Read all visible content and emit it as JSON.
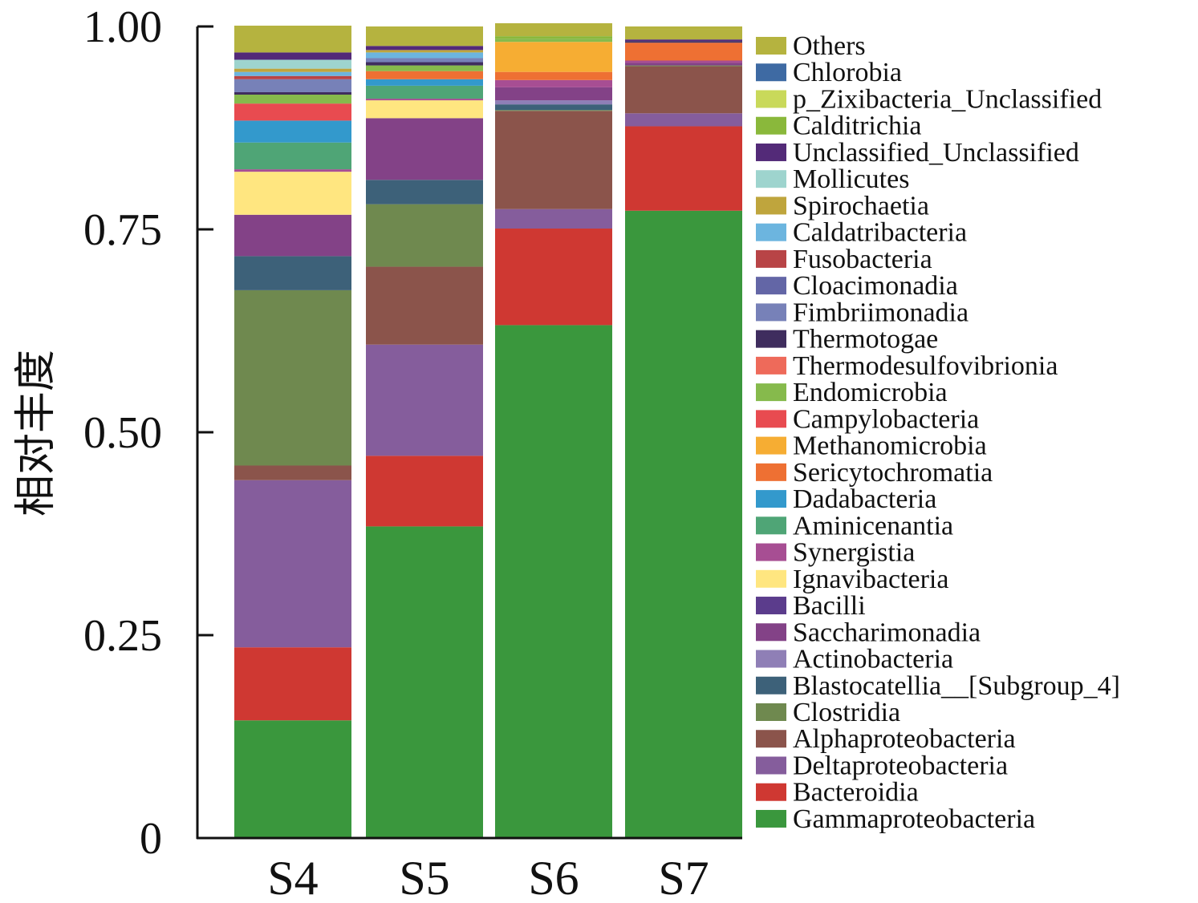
{
  "chart_data": {
    "type": "bar",
    "stacked": true,
    "title": "",
    "xlabel": "",
    "ylabel": "相对丰度",
    "ylim": [
      0,
      1.0
    ],
    "yticks": [
      "0",
      "0.25",
      "0.50",
      "0.75",
      "1.00"
    ],
    "ytick_values": [
      0,
      0.25,
      0.5,
      0.75,
      1.0
    ],
    "categories": [
      "S4",
      "S5",
      "S6",
      "S7"
    ],
    "legend_position": "right",
    "legend_order_top_to_bottom": [
      "Others",
      "Chlorobia",
      "p_Zixibacteria_Unclassified",
      "Calditrichia",
      "Unclassified_Unclassified",
      "Mollicutes",
      "Spirochaetia",
      "Caldatribacteria",
      "Fusobacteria",
      "Cloacimonadia",
      "Fimbriimonadia",
      "Thermotogae",
      "Thermodesulfovibrionia",
      "Endomicrobia",
      "Campylobacteria",
      "Methanomicrobia",
      "Sericytochromatia",
      "Dadabacteria",
      "Aminicenantia",
      "Synergistia",
      "Ignavibacteria",
      "Bacilli",
      "Saccharimonadia",
      "Actinobacteria",
      "Blastocatellia__[Subgroup_4]",
      "Clostridia",
      "Alphaproteobacteria",
      "Deltaproteobacteria",
      "Bacteroidia",
      "Gammaproteobacteria"
    ],
    "series": [
      {
        "name": "Gammaproteobacteria",
        "color": "#3A973D",
        "values": [
          0.145,
          0.384,
          0.632,
          0.773
        ]
      },
      {
        "name": "Bacteroidia",
        "color": "#CF3832",
        "values": [
          0.09,
          0.087,
          0.119,
          0.104
        ]
      },
      {
        "name": "Deltaproteobacteria",
        "color": "#855D9C",
        "values": [
          0.206,
          0.137,
          0.024,
          0.016
        ]
      },
      {
        "name": "Alphaproteobacteria",
        "color": "#8B544B",
        "values": [
          0.018,
          0.096,
          0.121,
          0.058
        ]
      },
      {
        "name": "Clostridia",
        "color": "#6F894F",
        "values": [
          0.216,
          0.077,
          0.001,
          0.001
        ]
      },
      {
        "name": "Blastocatellia__[Subgroup_4]",
        "color": "#3D6179",
        "values": [
          0.042,
          0.03,
          0.007,
          0.0
        ]
      },
      {
        "name": "Actinobacteria",
        "color": "#8F7FB6",
        "values": [
          0.0,
          0.0,
          0.005,
          0.0
        ]
      },
      {
        "name": "Saccharimonadia",
        "color": "#834287",
        "values": [
          0.051,
          0.076,
          0.016,
          0.003
        ]
      },
      {
        "name": "Bacilli",
        "color": "#5B3C8C",
        "values": [
          0.0,
          0.0,
          0.0,
          0.0
        ]
      },
      {
        "name": "Ignavibacteria",
        "color": "#FFE680",
        "values": [
          0.053,
          0.022,
          0.0,
          0.0
        ]
      },
      {
        "name": "Synergistia",
        "color": "#A74E93",
        "values": [
          0.003,
          0.002,
          0.009,
          0.003
        ]
      },
      {
        "name": "Aminicenantia",
        "color": "#4FA576",
        "values": [
          0.033,
          0.016,
          0.0,
          0.0
        ]
      },
      {
        "name": "Dadabacteria",
        "color": "#3399CC",
        "values": [
          0.027,
          0.008,
          0.0,
          0.0
        ]
      },
      {
        "name": "Sericytochromatia",
        "color": "#EE7033",
        "values": [
          0.0,
          0.01,
          0.01,
          0.022
        ]
      },
      {
        "name": "Methanomicrobia",
        "color": "#F6AD33",
        "values": [
          0.0,
          0.0,
          0.037,
          0.0
        ]
      },
      {
        "name": "Campylobacteria",
        "color": "#E84B50",
        "values": [
          0.021,
          0.0,
          0.0,
          0.0
        ]
      },
      {
        "name": "Endomicrobia",
        "color": "#86BA4C",
        "values": [
          0.011,
          0.007,
          0.004,
          0.0
        ]
      },
      {
        "name": "Thermodesulfovibrionia",
        "color": "#EE6A5A",
        "values": [
          0.0,
          0.0,
          0.0,
          0.0
        ]
      },
      {
        "name": "Thermotogae",
        "color": "#3F2D5E",
        "values": [
          0.003,
          0.004,
          0.0,
          0.002
        ]
      },
      {
        "name": "Fimbriimonadia",
        "color": "#7781B8",
        "values": [
          0.016,
          0.005,
          0.0,
          0.0
        ]
      },
      {
        "name": "Cloacimonadia",
        "color": "#6366A6",
        "values": [
          0.0,
          0.0,
          0.0,
          0.0
        ]
      },
      {
        "name": "Fusobacteria",
        "color": "#B84446",
        "values": [
          0.004,
          0.0,
          0.0,
          0.0
        ]
      },
      {
        "name": "Caldatribacteria",
        "color": "#6CB5DF",
        "values": [
          0.005,
          0.007,
          0.0,
          0.0
        ]
      },
      {
        "name": "Spirochaetia",
        "color": "#BFA53D",
        "values": [
          0.004,
          0.003,
          0.0,
          0.0
        ]
      },
      {
        "name": "Mollicutes",
        "color": "#9ED4CE",
        "values": [
          0.011,
          0.0,
          0.0,
          0.0
        ]
      },
      {
        "name": "Unclassified_Unclassified",
        "color": "#532A78",
        "values": [
          0.009,
          0.005,
          0.0,
          0.002
        ]
      },
      {
        "name": "Calditrichia",
        "color": "#8AB83B",
        "values": [
          0.0,
          0.0,
          0.003,
          0.0
        ]
      },
      {
        "name": "p_Zixibacteria_Unclassified",
        "color": "#C9D95A",
        "values": [
          0.0,
          0.0,
          0.0,
          0.0
        ]
      },
      {
        "name": "Chlorobia",
        "color": "#3E6AA3",
        "values": [
          0.0,
          0.0,
          0.0,
          0.0
        ]
      },
      {
        "name": "Others",
        "color": "#B5B33F",
        "values": [
          0.033,
          0.022,
          0.016,
          0.013
        ]
      }
    ]
  }
}
